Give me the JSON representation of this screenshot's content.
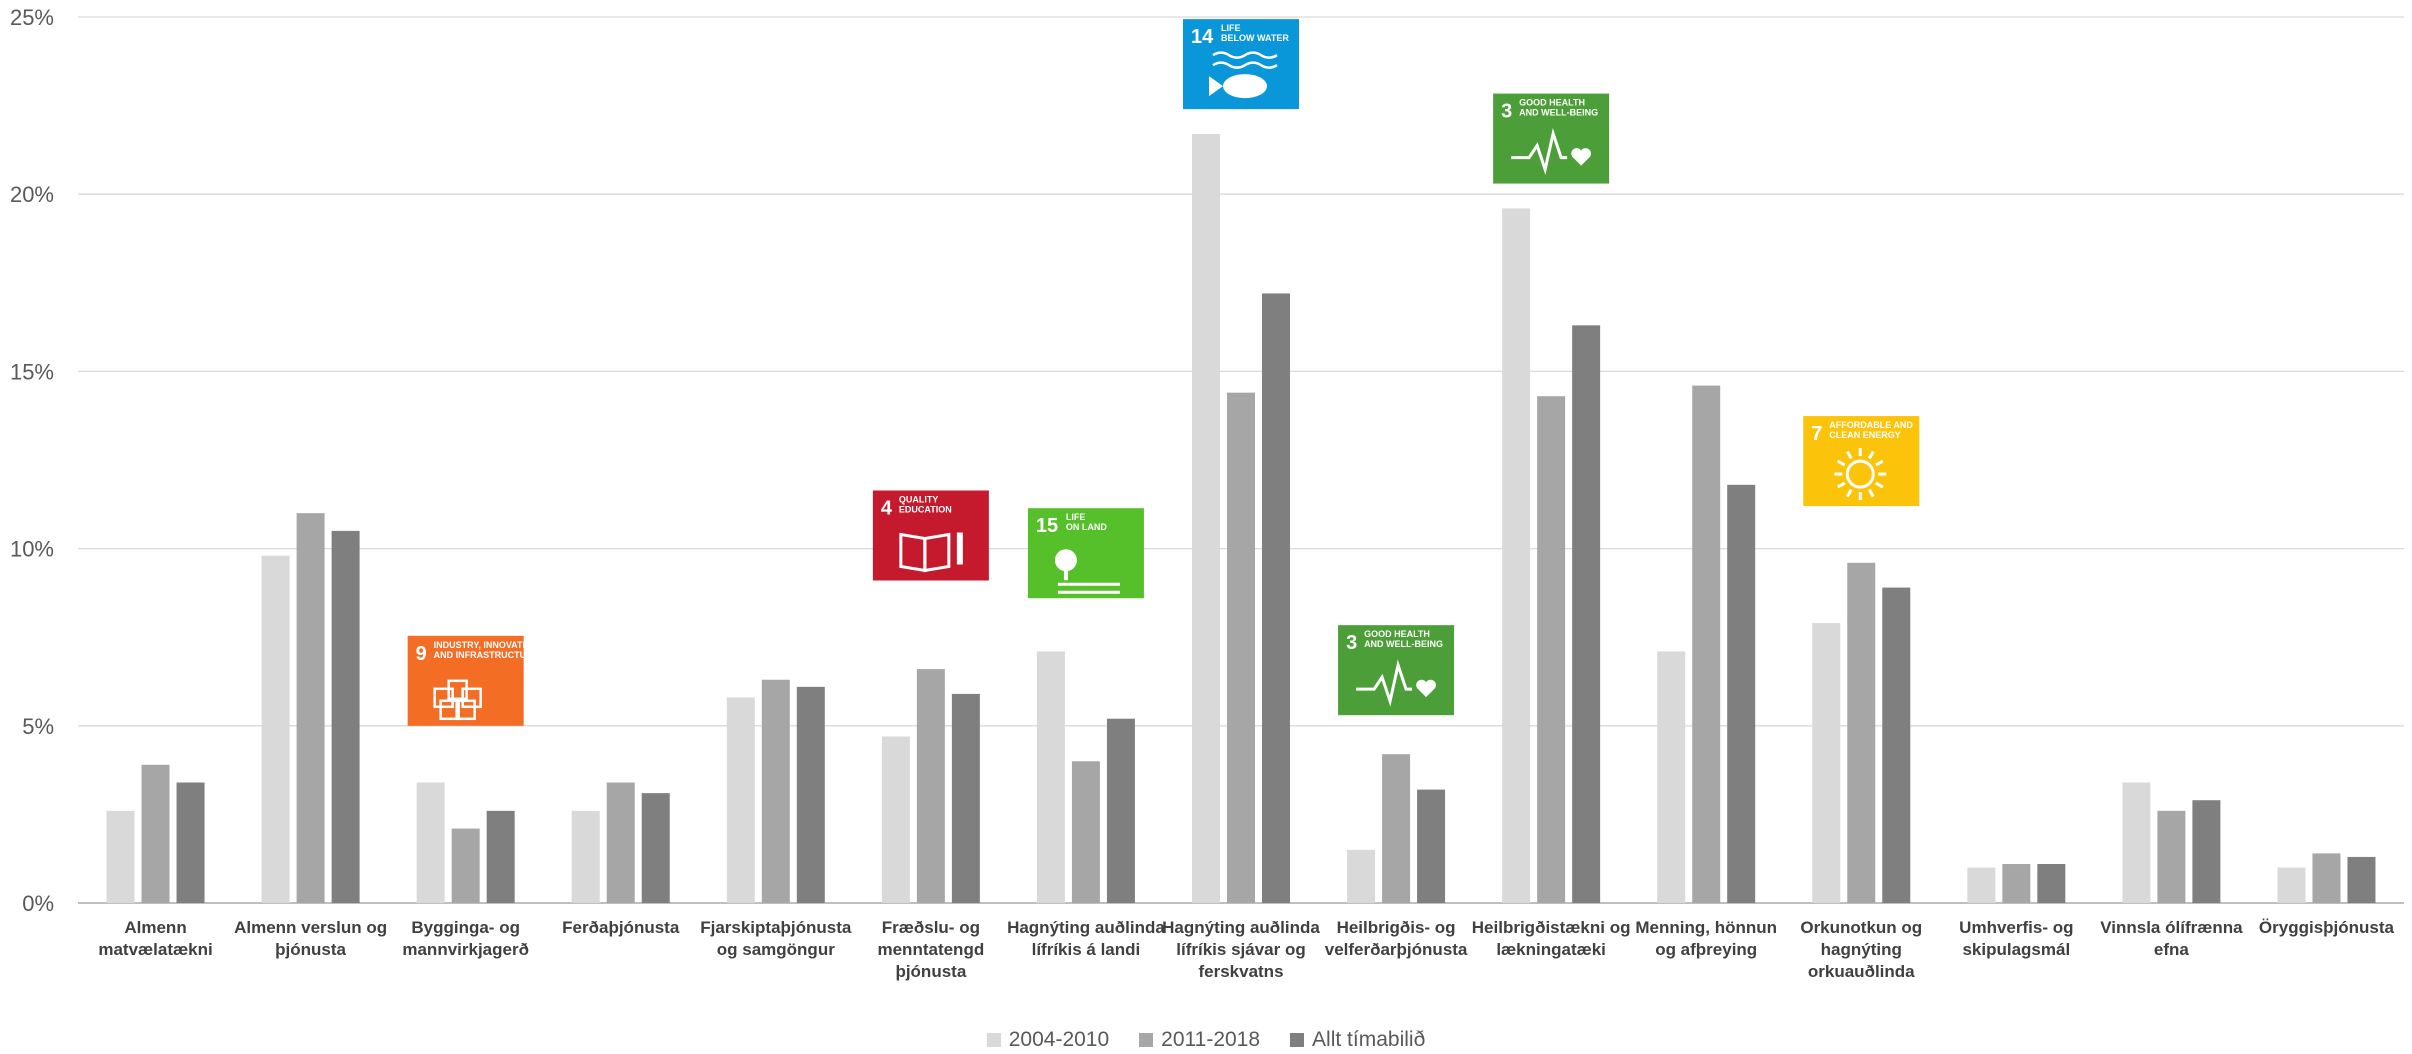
{
  "chart_data": {
    "type": "bar",
    "ylim": [
      0,
      25
    ],
    "yticks": [
      "0%",
      "5%",
      "10%",
      "15%",
      "20%",
      "25%"
    ],
    "grid": true,
    "legend_position": "bottom",
    "categories": [
      [
        "Almenn",
        "matvælatækni"
      ],
      [
        "Almenn verslun og",
        "þjónusta"
      ],
      [
        "Bygginga- og",
        "mannvirkjagerð"
      ],
      [
        "Ferðaþjónusta"
      ],
      [
        "Fjarskiptaþjónusta",
        "og samgöngur"
      ],
      [
        "Fræðslu- og",
        "menntatengd",
        "þjónusta"
      ],
      [
        "Hagnýting auðlinda",
        "lífríkis á landi"
      ],
      [
        "Hagnýting auðlinda",
        "lífríkis sjávar og",
        "ferskvatns"
      ],
      [
        "Heilbrigðis- og",
        "velferðarþjónusta"
      ],
      [
        "Heilbrigðistækni og",
        "lækningatæki"
      ],
      [
        "Menning, hönnun",
        "og afþreying"
      ],
      [
        "Orkunotkun og",
        "hagnýting",
        "orkuauðlinda"
      ],
      [
        "Umhverfis- og",
        "skipulagsmál"
      ],
      [
        "Vinnsla ólífrænna",
        "efna"
      ],
      [
        "Öryggisþjónusta"
      ]
    ],
    "series": [
      {
        "name": "2004-2010",
        "color": "#d9d9d9",
        "values": [
          2.6,
          9.8,
          3.4,
          2.6,
          5.8,
          4.7,
          7.1,
          21.7,
          1.5,
          19.6,
          7.1,
          7.9,
          1.0,
          3.4,
          1.0
        ]
      },
      {
        "name": "2011-2018",
        "color": "#a6a6a6",
        "values": [
          3.9,
          11.0,
          2.1,
          3.4,
          6.3,
          6.6,
          4.0,
          14.4,
          4.2,
          14.3,
          14.6,
          9.6,
          1.1,
          2.6,
          1.4
        ]
      },
      {
        "name": "Allt tímabilið",
        "color": "#7f7f7f",
        "values": [
          3.4,
          10.5,
          2.6,
          3.1,
          6.1,
          5.9,
          5.2,
          17.2,
          3.2,
          16.3,
          11.8,
          8.9,
          1.1,
          2.9,
          1.3
        ]
      }
    ],
    "annotations": [
      {
        "category_index": 2,
        "level": 5.0,
        "goal": "9",
        "text": [
          "INDUSTRY, INNOVATION",
          "AND INFRASTRUCTURE"
        ],
        "color": "#f36d25",
        "icon": "cubes-icon"
      },
      {
        "category_index": 5,
        "level": 9.1,
        "goal": "4",
        "text": [
          "QUALITY",
          "EDUCATION"
        ],
        "color": "#c5192d",
        "icon": "book-icon"
      },
      {
        "category_index": 6,
        "level": 8.6,
        "goal": "15",
        "text": [
          "LIFE",
          "ON LAND"
        ],
        "color": "#56c02b",
        "icon": "tree-icon"
      },
      {
        "category_index": 7,
        "level": 22.4,
        "goal": "14",
        "text": [
          "LIFE",
          "BELOW WATER"
        ],
        "color": "#0a97d9",
        "icon": "fish-icon"
      },
      {
        "category_index": 8,
        "level": 5.3,
        "goal": "3",
        "text": [
          "GOOD HEALTH",
          "AND WELL-BEING"
        ],
        "color": "#4c9f38",
        "icon": "heartbeat-icon"
      },
      {
        "category_index": 9,
        "level": 20.3,
        "goal": "3",
        "text": [
          "GOOD HEALTH",
          "AND WELL-BEING"
        ],
        "color": "#4c9f38",
        "icon": "heartbeat-icon"
      },
      {
        "category_index": 11,
        "level": 11.2,
        "goal": "7",
        "text": [
          "AFFORDABLE AND",
          "CLEAN ENERGY"
        ],
        "color": "#fcc30b",
        "icon": "sun-icon"
      }
    ]
  }
}
